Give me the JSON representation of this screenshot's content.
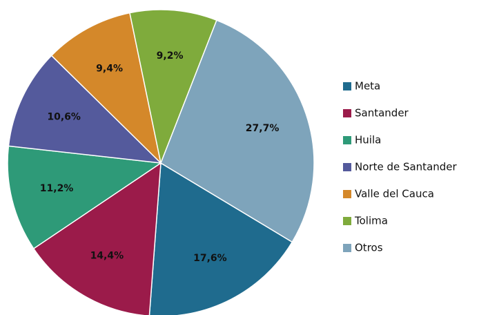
{
  "chart_data": {
    "type": "pie",
    "categories": [
      "Meta",
      "Santander",
      "Huila",
      "Norte de Santander",
      "Valle del Cauca",
      "Tolima",
      "Otros"
    ],
    "values": [
      17.6,
      14.4,
      11.2,
      10.6,
      9.4,
      9.2,
      27.7
    ],
    "value_labels": [
      "17,6%",
      "14,4%",
      "11,2%",
      "10,6%",
      "9,4%",
      "9,2%",
      "27,7%"
    ],
    "colors": [
      "#1f6b8e",
      "#9b1b4a",
      "#2e9a78",
      "#545a9c",
      "#d4882a",
      "#7fab3c",
      "#7ea4bb"
    ],
    "legend": "right"
  }
}
